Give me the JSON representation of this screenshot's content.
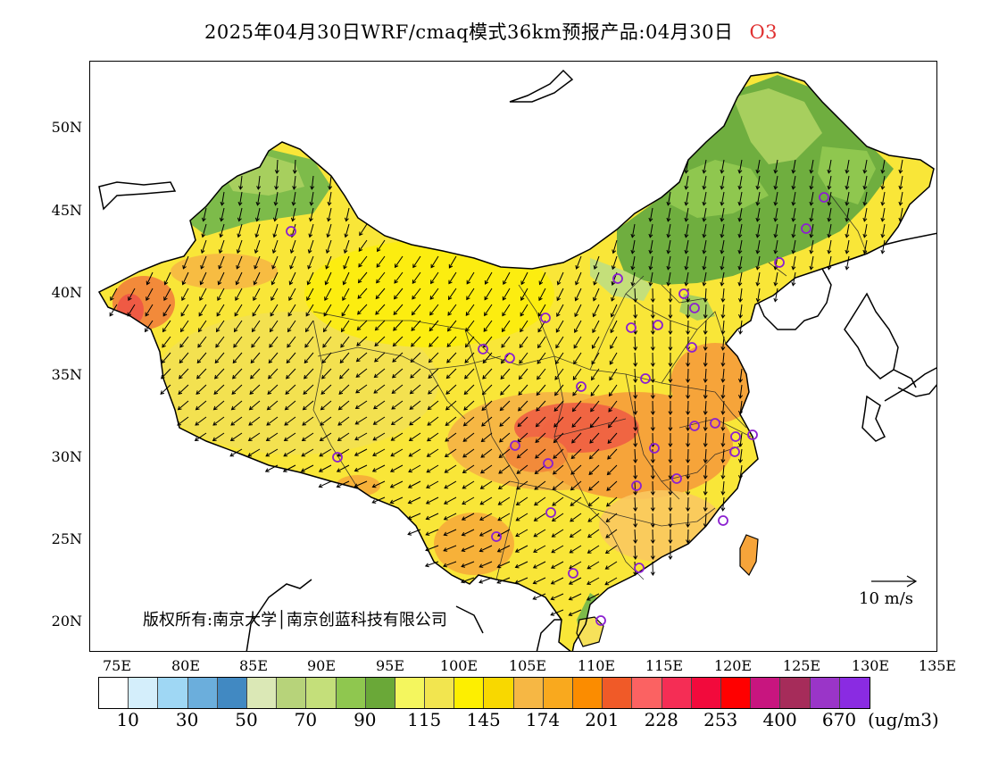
{
  "title": "2025年04月30日WRF/cmaq模式36km预报产品:04月30日",
  "pollutant": "O3",
  "lat_labels": [
    "50N",
    "45N",
    "40N",
    "35N",
    "30N",
    "25N",
    "20N"
  ],
  "lon_labels": [
    "75E",
    "80E",
    "85E",
    "90E",
    "95E",
    "100E",
    "105E",
    "110E",
    "115E",
    "120E",
    "125E",
    "130E",
    "135E"
  ],
  "copyright": "版权所有:南京大学│南京创蓝科技有限公司",
  "wind_scale": "10 m/s",
  "legend": {
    "colors": [
      "#ffffff",
      "#d4eefb",
      "#9fd7f4",
      "#6baedc",
      "#4189c2",
      "#dbe8b6",
      "#b7d37a",
      "#c4df7a",
      "#8fc74f",
      "#6aa838",
      "#f4f65e",
      "#f2e54f",
      "#fdef00",
      "#f8d800",
      "#f6b744",
      "#f9a91e",
      "#fb8c00",
      "#f05a28",
      "#fb6262",
      "#f52d55",
      "#f20a3c",
      "#ff0000",
      "#c8157f",
      "#a62c5a",
      "#9a35c8",
      "#8a2be2"
    ],
    "labels": [
      "10",
      "30",
      "50",
      "70",
      "90",
      "115",
      "145",
      "174",
      "201",
      "228",
      "253",
      "400",
      "670"
    ],
    "unit": "(ug/m3)"
  },
  "colors": {
    "outline": "#000000",
    "station": "#8b20d0",
    "base_fill": "#f9e638",
    "green": "#6fae3f",
    "lightgreen": "#a7cf5e",
    "orange": "#f6a43a",
    "red": "#ef5a44"
  }
}
